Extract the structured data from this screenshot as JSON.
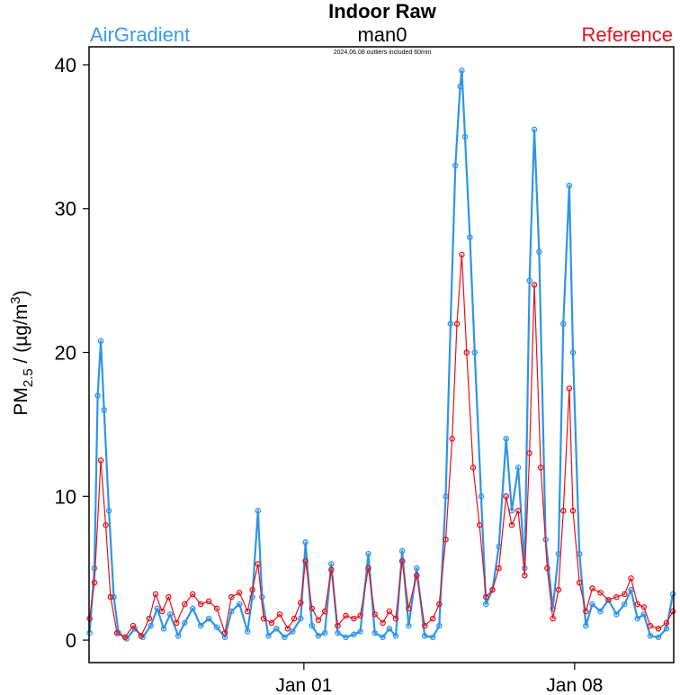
{
  "chart_data": {
    "type": "line",
    "title": "Indoor Raw",
    "subtitle": "man0",
    "note": "2024.06.08 outliers included 60min",
    "left_label": "AirGradient",
    "right_label": "Reference",
    "ylabel": {
      "base": "PM",
      "sub": "2.5",
      "mid": " / (µg/m",
      "sup": "3",
      "end": ")"
    },
    "xlim": [
      "Dec 26 10:40",
      "Jan 10 13:30"
    ],
    "ylim": [
      -1.56,
      41.25
    ],
    "xticks": [
      {
        "label": "Jan 01",
        "at": "Jan 01 00:00"
      },
      {
        "label": "Jan 08",
        "at": "Jan 08 00:00"
      }
    ],
    "yticks": [
      0,
      10,
      20,
      30,
      40
    ],
    "grid": false,
    "colors": {
      "airgradient": "#2e95e8",
      "reference": "#e8101a"
    },
    "series": [
      {
        "name": "AirGradient",
        "key": "airgradient",
        "points": [
          [
            "Dec 26 11:00",
            0.5
          ],
          [
            "Dec 26 14:00",
            5
          ],
          [
            "Dec 26 16:00",
            17
          ],
          [
            "Dec 26 18:00",
            20.8
          ],
          [
            "Dec 26 20:00",
            16
          ],
          [
            "Dec 26 23:00",
            9
          ],
          [
            "Dec 27 02:00",
            3
          ],
          [
            "Dec 27 05:00",
            0.5
          ],
          [
            "Dec 27 10:00",
            0.1
          ],
          [
            "Dec 27 15:00",
            0.8
          ],
          [
            "Dec 27 20:00",
            0.2
          ],
          [
            "Dec 28 01:00",
            1.0
          ],
          [
            "Dec 28 05:00",
            2.2
          ],
          [
            "Dec 28 09:00",
            0.8
          ],
          [
            "Dec 28 13:00",
            1.8
          ],
          [
            "Dec 28 18:00",
            0.3
          ],
          [
            "Dec 28 22:00",
            1.2
          ],
          [
            "Dec 29 03:00",
            2.2
          ],
          [
            "Dec 29 08:00",
            1.0
          ],
          [
            "Dec 29 13:00",
            1.5
          ],
          [
            "Dec 29 18:00",
            0.9
          ],
          [
            "Dec 29 23:00",
            0.2
          ],
          [
            "Dec 30 03:00",
            2.0
          ],
          [
            "Dec 30 08:00",
            2.5
          ],
          [
            "Dec 30 13:00",
            0.6
          ],
          [
            "Dec 30 16:00",
            3.0
          ],
          [
            "Dec 30 19:30",
            9.0
          ],
          [
            "Dec 30 22:00",
            3.0
          ],
          [
            "Dec 31 02:00",
            0.3
          ],
          [
            "Dec 31 07:00",
            0.8
          ],
          [
            "Dec 31 12:00",
            0.2
          ],
          [
            "Dec 31 17:00",
            0.6
          ],
          [
            "Dec 31 22:00",
            1.5
          ],
          [
            "Jan 01 01:00",
            6.8
          ],
          [
            "Jan 01 05:00",
            1.0
          ],
          [
            "Jan 01 09:00",
            0.3
          ],
          [
            "Jan 01 13:00",
            0.5
          ],
          [
            "Jan 01 17:00",
            5.3
          ],
          [
            "Jan 01 21:00",
            0.5
          ],
          [
            "Jan 02 02:00",
            0.2
          ],
          [
            "Jan 02 07:00",
            0.4
          ],
          [
            "Jan 02 11:00",
            0.6
          ],
          [
            "Jan 02 16:00",
            6.0
          ],
          [
            "Jan 02 20:00",
            0.5
          ],
          [
            "Jan 03 01:00",
            0.2
          ],
          [
            "Jan 03 05:00",
            0.8
          ],
          [
            "Jan 03 09:00",
            0.3
          ],
          [
            "Jan 03 13:00",
            6.2
          ],
          [
            "Jan 03 17:00",
            1.0
          ],
          [
            "Jan 03 22:00",
            5.0
          ],
          [
            "Jan 04 03:00",
            0.3
          ],
          [
            "Jan 04 08:00",
            0.2
          ],
          [
            "Jan 04 12:00",
            1.0
          ],
          [
            "Jan 04 16:00",
            10
          ],
          [
            "Jan 04 19:00",
            22
          ],
          [
            "Jan 04 22:00",
            33
          ],
          [
            "Jan 05 01:00",
            38.5
          ],
          [
            "Jan 05 02:00",
            39.6
          ],
          [
            "Jan 05 04:00",
            35
          ],
          [
            "Jan 05 07:00",
            28
          ],
          [
            "Jan 05 10:00",
            20
          ],
          [
            "Jan 05 14:00",
            10
          ],
          [
            "Jan 05 17:00",
            2.5
          ],
          [
            "Jan 05 21:00",
            3.5
          ],
          [
            "Jan 06 01:00",
            6.5
          ],
          [
            "Jan 06 05:30",
            14
          ],
          [
            "Jan 06 09:00",
            9.0
          ],
          [
            "Jan 06 13:00",
            12
          ],
          [
            "Jan 06 17:00",
            5.0
          ],
          [
            "Jan 06 20:00",
            25
          ],
          [
            "Jan 06 23:00",
            35.5
          ],
          [
            "Jan 07 02:00",
            27
          ],
          [
            "Jan 07 06:00",
            7
          ],
          [
            "Jan 07 10:30",
            2.2
          ],
          [
            "Jan 07 14:00",
            6.0
          ],
          [
            "Jan 07 17:00",
            22
          ],
          [
            "Jan 07 20:40",
            31.6
          ],
          [
            "Jan 07 23:00",
            20
          ],
          [
            "Jan 08 03:00",
            6
          ],
          [
            "Jan 08 07:00",
            1.0
          ],
          [
            "Jan 08 11:00",
            2.5
          ],
          [
            "Jan 08 16:00",
            2.0
          ],
          [
            "Jan 08 21:00",
            2.8
          ],
          [
            "Jan 09 02:00",
            1.8
          ],
          [
            "Jan 09 07:00",
            2.5
          ],
          [
            "Jan 09 11:00",
            3.5
          ],
          [
            "Jan 09 15:00",
            1.5
          ],
          [
            "Jan 09 19:00",
            1.8
          ],
          [
            "Jan 09 23:00",
            0.3
          ],
          [
            "Jan 10 04:00",
            0.2
          ],
          [
            "Jan 10 09:00",
            0.8
          ],
          [
            "Jan 10 13:00",
            3.2
          ]
        ]
      },
      {
        "name": "Reference",
        "key": "reference",
        "points": [
          [
            "Dec 26 11:00",
            1.5
          ],
          [
            "Dec 26 14:00",
            4
          ],
          [
            "Dec 26 18:00",
            12.5
          ],
          [
            "Dec 26 21:00",
            8
          ],
          [
            "Dec 27 00:00",
            3
          ],
          [
            "Dec 27 04:00",
            0.5
          ],
          [
            "Dec 27 09:00",
            0.2
          ],
          [
            "Dec 27 14:00",
            1.0
          ],
          [
            "Dec 27 19:00",
            0.3
          ],
          [
            "Dec 28 00:00",
            1.5
          ],
          [
            "Dec 28 04:00",
            3.2
          ],
          [
            "Dec 28 08:00",
            2.0
          ],
          [
            "Dec 28 12:00",
            3.0
          ],
          [
            "Dec 28 17:00",
            1.2
          ],
          [
            "Dec 28 22:00",
            2.5
          ],
          [
            "Dec 29 03:00",
            3.2
          ],
          [
            "Dec 29 08:00",
            2.5
          ],
          [
            "Dec 29 13:00",
            2.7
          ],
          [
            "Dec 29 18:00",
            2.2
          ],
          [
            "Dec 29 23:00",
            0.5
          ],
          [
            "Dec 30 03:00",
            3.0
          ],
          [
            "Dec 30 08:00",
            3.3
          ],
          [
            "Dec 30 13:00",
            2.0
          ],
          [
            "Dec 30 16:00",
            3.5
          ],
          [
            "Dec 30 19:30",
            5.3
          ],
          [
            "Dec 30 23:00",
            1.5
          ],
          [
            "Dec 31 04:00",
            1.2
          ],
          [
            "Dec 31 09:00",
            1.8
          ],
          [
            "Dec 31 14:00",
            0.8
          ],
          [
            "Dec 31 18:00",
            1.5
          ],
          [
            "Dec 31 22:00",
            2.6
          ],
          [
            "Jan 01 01:00",
            5.5
          ],
          [
            "Jan 01 05:00",
            2.2
          ],
          [
            "Jan 01 09:00",
            1.4
          ],
          [
            "Jan 01 13:00",
            2.0
          ],
          [
            "Jan 01 17:00",
            4.9
          ],
          [
            "Jan 01 21:00",
            1.0
          ],
          [
            "Jan 02 02:00",
            1.7
          ],
          [
            "Jan 02 07:00",
            1.5
          ],
          [
            "Jan 02 11:00",
            1.7
          ],
          [
            "Jan 02 16:00",
            5.0
          ],
          [
            "Jan 02 20:00",
            1.8
          ],
          [
            "Jan 03 01:00",
            1.2
          ],
          [
            "Jan 03 05:00",
            2.0
          ],
          [
            "Jan 03 09:00",
            1.5
          ],
          [
            "Jan 03 13:00",
            5.5
          ],
          [
            "Jan 03 17:00",
            2.2
          ],
          [
            "Jan 03 22:00",
            4.5
          ],
          [
            "Jan 04 03:00",
            1.0
          ],
          [
            "Jan 04 08:00",
            1.5
          ],
          [
            "Jan 04 12:00",
            2.5
          ],
          [
            "Jan 04 16:00",
            7.0
          ],
          [
            "Jan 04 20:00",
            14
          ],
          [
            "Jan 04 23:00",
            22
          ],
          [
            "Jan 05 02:00",
            26.8
          ],
          [
            "Jan 05 05:00",
            20
          ],
          [
            "Jan 05 09:00",
            12
          ],
          [
            "Jan 05 13:00",
            8
          ],
          [
            "Jan 05 17:00",
            3.0
          ],
          [
            "Jan 05 21:00",
            3.5
          ],
          [
            "Jan 06 01:00",
            5.0
          ],
          [
            "Jan 06 05:30",
            10
          ],
          [
            "Jan 06 09:00",
            8.0
          ],
          [
            "Jan 06 13:00",
            9.0
          ],
          [
            "Jan 06 17:00",
            4.5
          ],
          [
            "Jan 06 20:00",
            13
          ],
          [
            "Jan 06 23:00",
            24.7
          ],
          [
            "Jan 07 03:00",
            12
          ],
          [
            "Jan 07 07:00",
            5
          ],
          [
            "Jan 07 10:30",
            1.5
          ],
          [
            "Jan 07 14:00",
            3.5
          ],
          [
            "Jan 07 17:00",
            9
          ],
          [
            "Jan 07 20:40",
            17.5
          ],
          [
            "Jan 07 23:00",
            9
          ],
          [
            "Jan 08 03:00",
            4
          ],
          [
            "Jan 08 07:00",
            2.0
          ],
          [
            "Jan 08 11:00",
            3.6
          ],
          [
            "Jan 08 16:00",
            3.3
          ],
          [
            "Jan 08 21:00",
            2.8
          ],
          [
            "Jan 09 02:00",
            3.0
          ],
          [
            "Jan 09 07:00",
            3.2
          ],
          [
            "Jan 09 11:00",
            4.3
          ],
          [
            "Jan 09 15:00",
            2.5
          ],
          [
            "Jan 09 19:00",
            2.3
          ],
          [
            "Jan 09 23:00",
            1.0
          ],
          [
            "Jan 10 04:00",
            0.8
          ],
          [
            "Jan 10 09:00",
            1.2
          ],
          [
            "Jan 10 13:00",
            2.0
          ]
        ]
      }
    ]
  }
}
